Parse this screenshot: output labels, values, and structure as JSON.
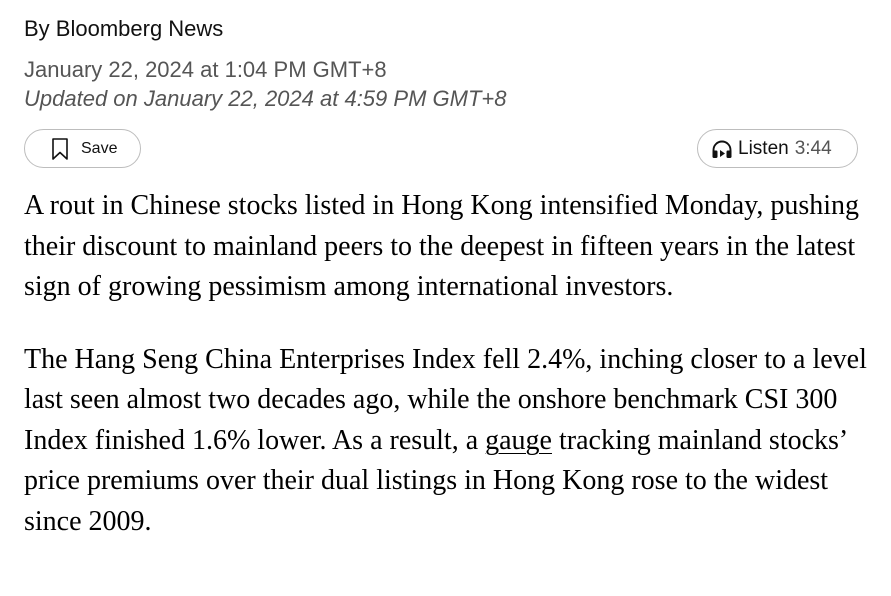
{
  "article": {
    "byline": "By Bloomberg News",
    "published": "January 22, 2024 at 1:04 PM GMT+8",
    "updated": "Updated on January 22, 2024 at 4:59 PM GMT+8",
    "icons": {
      "save": "bookmark-icon",
      "listen": "headphones-icon"
    },
    "save_label": "Save",
    "listen_label": "Listen",
    "listen_duration": "3:44",
    "paragraph1": "A rout in Chinese stocks listed in Hong Kong intensified Monday, pushing their discount to mainland peers to the deepest in fifteen years in the latest sign of growing pessimism among international investors.",
    "paragraph2_before": "The Hang Seng China Enterprises Index fell 2.4%, inching closer to a level last seen almost two decades ago, while the onshore benchmark CSI 300 Index finished 1.6% lower. As a result, a ",
    "paragraph2_link": "gauge",
    "paragraph2_after": " tracking mainland stocks’ price premiums over their dual listings in Hong Kong rose to the widest since 2009."
  }
}
